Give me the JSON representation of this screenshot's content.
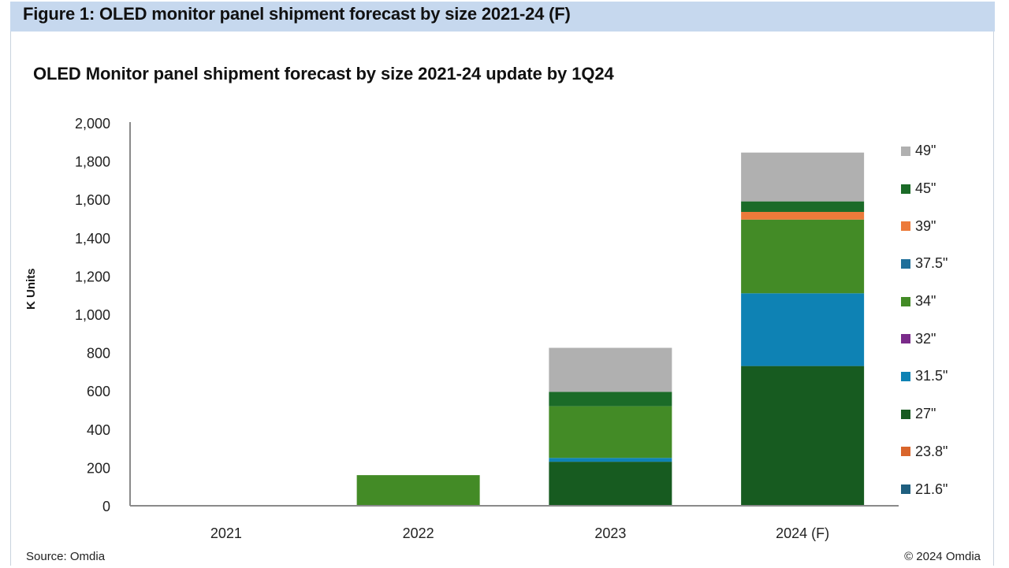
{
  "figure_title": "Figure 1: OLED monitor panel shipment forecast by size 2021-24 (F)",
  "source": "Source: Omdia",
  "copyright": "© 2024 Omdia",
  "chart_data": {
    "type": "bar",
    "stacked": true,
    "title": "OLED Monitor panel shipment forecast by size 2021-24 update by 1Q24",
    "xlabel": "",
    "ylabel": "K Units",
    "ylim": [
      0,
      2000
    ],
    "yticks": [
      0,
      200,
      400,
      600,
      800,
      1000,
      1200,
      1400,
      1600,
      1800,
      2000
    ],
    "ytick_labels": [
      "0",
      "200",
      "400",
      "600",
      "800",
      "1,000",
      "1,200",
      "1,400",
      "1,600",
      "1,800",
      "2,000"
    ],
    "grid": false,
    "legend_position": "right",
    "categories": [
      "2021",
      "2022",
      "2023",
      "2024 (F)"
    ],
    "series": [
      {
        "name": "21.6\"",
        "color": "#1f5f7f",
        "values": [
          0,
          0,
          0,
          0
        ]
      },
      {
        "name": "23.8\"",
        "color": "#d9652b",
        "values": [
          0,
          0,
          0,
          0
        ]
      },
      {
        "name": "27\"",
        "color": "#175b20",
        "values": [
          0,
          0,
          230,
          730
        ]
      },
      {
        "name": "31.5\"",
        "color": "#0e82b4",
        "values": [
          0,
          0,
          20,
          380
        ]
      },
      {
        "name": "32\"",
        "color": "#7a2a8a",
        "values": [
          0,
          0,
          0,
          0
        ]
      },
      {
        "name": "34\"",
        "color": "#438b26",
        "values": [
          0,
          160,
          270,
          385
        ]
      },
      {
        "name": "37.5\"",
        "color": "#1f6f9a",
        "values": [
          0,
          0,
          0,
          0
        ]
      },
      {
        "name": "39\"",
        "color": "#ec7a3a",
        "values": [
          0,
          0,
          0,
          40
        ]
      },
      {
        "name": "45\"",
        "color": "#1b6b28",
        "values": [
          0,
          0,
          75,
          55
        ]
      },
      {
        "name": "49\"",
        "color": "#b0b0b0",
        "values": [
          0,
          0,
          230,
          255
        ]
      }
    ]
  }
}
